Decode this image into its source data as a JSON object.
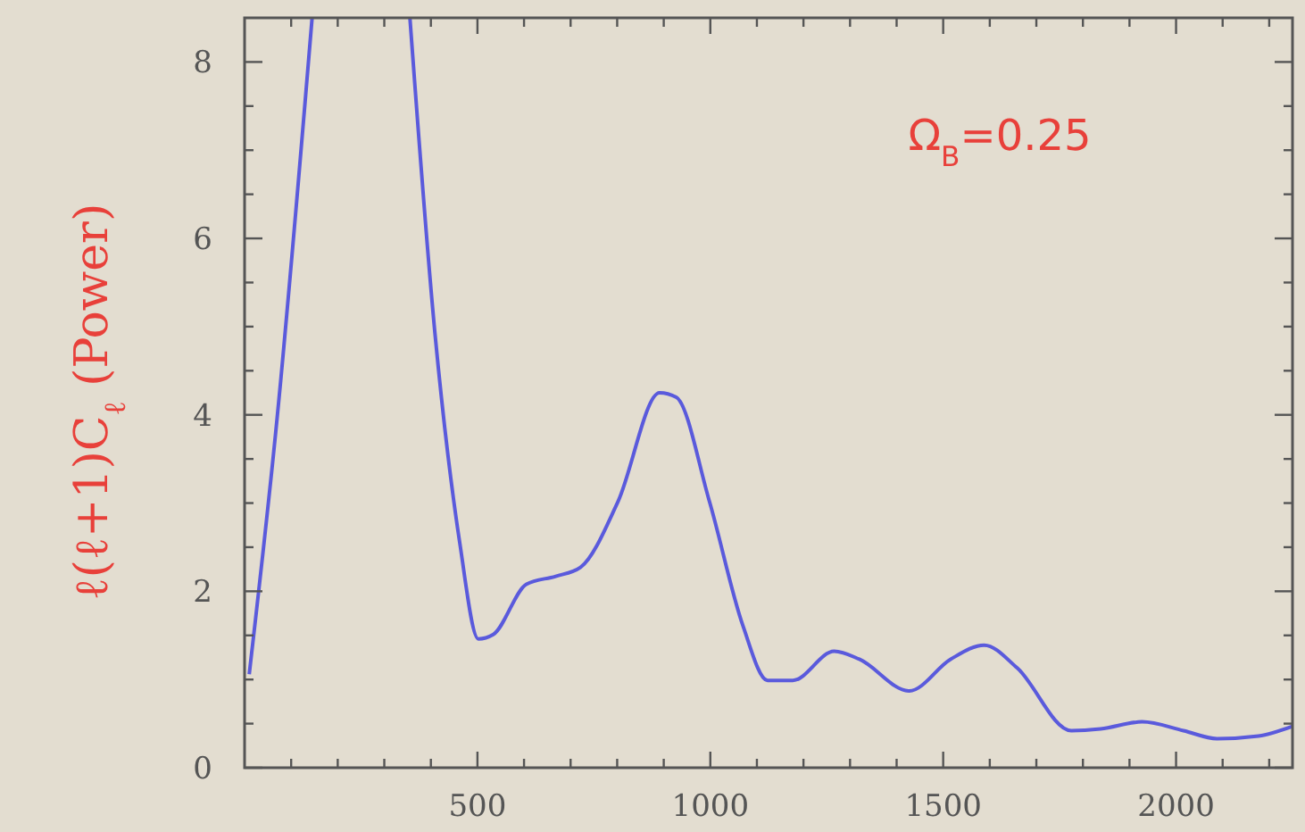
{
  "chart_data": {
    "type": "line",
    "ylabel": "ℓ(ℓ+1)C$_{ℓ}$ (Power)",
    "annotations": [
      "Ω$_{B}$=0.25"
    ],
    "series": [
      {
        "color": "#5a5adc",
        "x": [
          10,
          70,
          145
        ],
        "values": [
          1.06,
          3.97,
          8.5
        ]
      },
      {
        "color": "#5a5adc",
        "x": [
          355,
          409,
          462,
          502,
          534,
          605,
          668,
          721,
          802,
          891,
          927,
          998,
          1070,
          1123,
          1177,
          1266,
          1320,
          1427,
          1516,
          1588,
          1659,
          1775,
          1838,
          1927,
          2016,
          2088,
          2177,
          2250
        ],
        "values": [
          8.5,
          4.91,
          2.55,
          1.46,
          1.51,
          2.08,
          2.17,
          2.27,
          3.02,
          4.25,
          4.2,
          3.02,
          1.61,
          0.99,
          0.99,
          1.32,
          1.23,
          0.87,
          1.23,
          1.39,
          1.13,
          0.42,
          0.44,
          0.52,
          0.42,
          0.33,
          0.36,
          0.47
        ]
      }
    ],
    "xlim": [
      0,
      2250
    ],
    "ylim": [
      0,
      8.5
    ],
    "xticks": [
      {
        "value": 100,
        "label": null
      },
      {
        "value": 200,
        "label": null
      },
      {
        "value": 300,
        "label": null
      },
      {
        "value": 400,
        "label": null
      },
      500,
      {
        "value": 600,
        "label": null
      },
      {
        "value": 700,
        "label": null
      },
      {
        "value": 800,
        "label": null
      },
      {
        "value": 900,
        "label": null
      },
      1000,
      {
        "value": 1100,
        "label": null
      },
      {
        "value": 1200,
        "label": null
      },
      {
        "value": 1300,
        "label": null
      },
      {
        "value": 1400,
        "label": null
      },
      1500,
      {
        "value": 1600,
        "label": null
      },
      {
        "value": 1700,
        "label": null
      },
      {
        "value": 1800,
        "label": null
      },
      {
        "value": 1900,
        "label": null
      },
      2000,
      {
        "value": 2100,
        "label": null
      },
      {
        "value": 2200,
        "label": null
      }
    ],
    "yticks": [
      0,
      {
        "value": 0.5,
        "label": null
      },
      {
        "value": 1,
        "label": null
      },
      {
        "value": 1.5,
        "label": null
      },
      2,
      {
        "value": 2.5,
        "label": null
      },
      {
        "value": 3,
        "label": null
      },
      {
        "value": 3.5,
        "label": null
      },
      4,
      {
        "value": 4.5,
        "label": null
      },
      {
        "value": 5,
        "label": null
      },
      {
        "value": 5.5,
        "label": null
      },
      6,
      {
        "value": 6.5,
        "label": null
      },
      {
        "value": 7,
        "label": null
      },
      {
        "value": 7.5,
        "label": null
      },
      8
    ],
    "grid": false,
    "line_style": "solid"
  }
}
